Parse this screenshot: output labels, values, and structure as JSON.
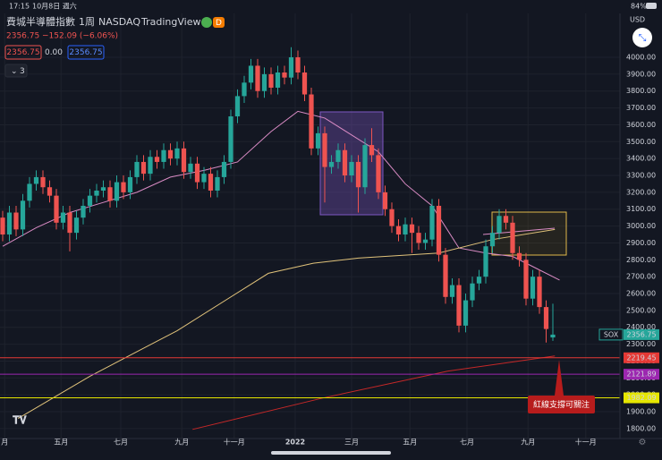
{
  "status": {
    "time": "17:15",
    "date": "10月8日 週六",
    "battery": "84%"
  },
  "header": {
    "symbol": "費城半導體指數",
    "interval": "1周",
    "exchange": "NASDAQ",
    "source": "TradingView",
    "badge": "D",
    "price": "2356.75",
    "change": "−152.09 (−6.06%)",
    "bid": "2356.75",
    "spread": "0.00",
    "ask": "2356.75",
    "indicators": "3",
    "currency": "USD"
  },
  "chart_data": {
    "type": "candlestick",
    "symbol_label": "SOX",
    "up_color": "#26a69a",
    "down_color": "#ef5350",
    "grid": true,
    "x": [
      0,
      1,
      2,
      3,
      4,
      5,
      6,
      7,
      8,
      9,
      10,
      11,
      12,
      13,
      14,
      15,
      16,
      17,
      18,
      19,
      20,
      21,
      22,
      23,
      24,
      25,
      26,
      27,
      28,
      29,
      30,
      31,
      32,
      33,
      34,
      35,
      36,
      37,
      38,
      39,
      40,
      41,
      42,
      43,
      44,
      45,
      46,
      47,
      48,
      49,
      50,
      51,
      52,
      53,
      54,
      55,
      56,
      57,
      58,
      59,
      60,
      61,
      62,
      63,
      64,
      65,
      66,
      67,
      68,
      69,
      70,
      71,
      72,
      73,
      74,
      75,
      76,
      77,
      78,
      79,
      80,
      81,
      82
    ],
    "open": [
      3050,
      2950,
      3080,
      2980,
      3150,
      3250,
      3290,
      3230,
      3180,
      3020,
      3080,
      2960,
      3050,
      3120,
      3180,
      3210,
      3230,
      3150,
      3260,
      3200,
      3290,
      3380,
      3310,
      3410,
      3380,
      3450,
      3400,
      3460,
      3320,
      3370,
      3260,
      3310,
      3210,
      3290,
      3380,
      3650,
      3770,
      3850,
      3950,
      3800,
      3900,
      3820,
      3910,
      3880,
      4000,
      3910,
      3780,
      3460,
      3550,
      3350,
      3380,
      3450,
      3300,
      3380,
      3230,
      3480,
      3420,
      3200,
      3100,
      3000,
      2950,
      3010,
      2960,
      2900,
      2920,
      3120,
      2830,
      2580,
      2650,
      2410,
      2560,
      2660,
      2700,
      2880,
      2960,
      3060,
      3020,
      2840,
      2800,
      2570,
      2700,
      2520,
      2340
    ],
    "high": [
      3090,
      3120,
      3120,
      3190,
      3290,
      3330,
      3330,
      3270,
      3220,
      3120,
      3120,
      3090,
      3160,
      3220,
      3250,
      3270,
      3270,
      3300,
      3300,
      3330,
      3420,
      3420,
      3450,
      3450,
      3490,
      3490,
      3500,
      3500,
      3410,
      3410,
      3350,
      3350,
      3330,
      3420,
      3690,
      3810,
      3890,
      3990,
      3990,
      3940,
      3940,
      3950,
      3950,
      4060,
      4040,
      3950,
      3820,
      3590,
      3590,
      3420,
      3490,
      3490,
      3420,
      3420,
      3520,
      3580,
      3460,
      3240,
      3140,
      3040,
      3050,
      3050,
      3000,
      2960,
      3160,
      3160,
      2870,
      2690,
      2690,
      2600,
      2700,
      2740,
      2920,
      3000,
      3100,
      3100,
      3060,
      2880,
      2840,
      2740,
      2740,
      2560,
      2540
    ],
    "low": [
      2910,
      2910,
      2940,
      2940,
      3110,
      3210,
      3190,
      3140,
      2980,
      2980,
      2850,
      2920,
      3010,
      3080,
      3140,
      3170,
      3110,
      3110,
      3160,
      3160,
      3250,
      3270,
      3270,
      3340,
      3340,
      3360,
      3360,
      3280,
      3280,
      3220,
      3220,
      3170,
      3170,
      3250,
      3340,
      3610,
      3730,
      3810,
      3760,
      3760,
      3780,
      3780,
      3840,
      3840,
      3870,
      3740,
      3420,
      3420,
      3140,
      3310,
      3340,
      3260,
      3260,
      3080,
      3190,
      3380,
      3160,
      3060,
      2960,
      2910,
      2910,
      2840,
      2860,
      2860,
      2880,
      2790,
      2540,
      2540,
      2370,
      2370,
      2520,
      2620,
      2660,
      2840,
      2920,
      2980,
      2800,
      2760,
      2530,
      2530,
      2480,
      2310,
      2320
    ],
    "close": [
      2950,
      3080,
      2980,
      3150,
      3250,
      3290,
      3230,
      3180,
      3020,
      3080,
      2960,
      3050,
      3120,
      3180,
      3210,
      3230,
      3150,
      3260,
      3200,
      3290,
      3380,
      3310,
      3410,
      3380,
      3450,
      3400,
      3460,
      3320,
      3370,
      3260,
      3310,
      3210,
      3290,
      3380,
      3650,
      3770,
      3850,
      3950,
      3800,
      3900,
      3820,
      3910,
      3880,
      4000,
      3910,
      3780,
      3460,
      3550,
      3350,
      3380,
      3450,
      3300,
      3380,
      3230,
      3480,
      3420,
      3200,
      3100,
      3000,
      2950,
      3010,
      2960,
      2900,
      2920,
      3120,
      2830,
      2580,
      2650,
      2410,
      2560,
      2660,
      2700,
      2880,
      2960,
      3060,
      3020,
      2840,
      2800,
      2570,
      2700,
      2520,
      2390,
      2356.75
    ],
    "lines": [
      {
        "color": "#d98bc4",
        "x": [
          0,
          5,
          10,
          15,
          20,
          25,
          30,
          35,
          40,
          44,
          48,
          52,
          56,
          60,
          64,
          68,
          72,
          76,
          80,
          83
        ],
        "values": [
          2880,
          2990,
          3080,
          3140,
          3200,
          3290,
          3330,
          3380,
          3560,
          3680,
          3640,
          3540,
          3440,
          3250,
          3120,
          2870,
          2840,
          2820,
          2740,
          2680
        ]
      },
      {
        "color": "#e0c27a",
        "x": [
          2.3,
          13,
          26,
          39.6,
          46.3,
          53,
          65,
          73,
          82.3
        ],
        "values": [
          1860,
          2110,
          2380,
          2720,
          2780,
          2810,
          2840,
          2920,
          2980
        ]
      },
      {
        "color": "#c62828",
        "x": [
          28.3,
          47.6,
          66.3,
          82.3
        ],
        "values": [
          1795,
          1980,
          2140,
          2230
        ]
      }
    ],
    "levels": [
      {
        "value": 2219.45,
        "color": "#e53935"
      },
      {
        "value": 2121.89,
        "color": "#9c27b0"
      },
      {
        "value": 1982.09,
        "color": "#e6e600"
      }
    ],
    "annotation": "紅線支撐可關注",
    "xlim": [
      -0.4,
      92
    ],
    "ylim": [
      1741,
      4260
    ],
    "xticks": [
      {
        "value": 0.3,
        "label": "月"
      },
      {
        "value": 8.7,
        "label": "五月"
      },
      {
        "value": 17.6,
        "label": "七月"
      },
      {
        "value": 26.7,
        "label": "九月"
      },
      {
        "value": 34.5,
        "label": "十一月"
      },
      {
        "value": 43.6,
        "label": "2022"
      },
      {
        "value": 52,
        "label": "三月"
      },
      {
        "value": 60.7,
        "label": "五月"
      },
      {
        "value": 69.2,
        "label": "七月"
      },
      {
        "value": 78.3,
        "label": "九月"
      },
      {
        "value": 86.9,
        "label": "十一月"
      }
    ],
    "yticks": [
      {
        "value": 1800,
        "label": "1800.00"
      },
      {
        "value": 1900,
        "label": "1900.00"
      },
      {
        "value": 2000,
        "label": "2000.00"
      },
      {
        "value": 2100,
        "label": "2100.00"
      },
      {
        "value": 2200,
        "label": "2200.00"
      },
      {
        "value": 2300,
        "label": "2300.00"
      },
      {
        "value": 2400,
        "label": "2400.00"
      },
      {
        "value": 2500,
        "label": "2500.00"
      },
      {
        "value": 2600,
        "label": "2600.00"
      },
      {
        "value": 2700,
        "label": "2700.00"
      },
      {
        "value": 2800,
        "label": "2800.00"
      },
      {
        "value": 2900,
        "label": "2900.00"
      },
      {
        "value": 3000,
        "label": "3000.00"
      },
      {
        "value": 3100,
        "label": "3100.00"
      },
      {
        "value": 3200,
        "label": "3200.00"
      },
      {
        "value": 3300,
        "label": "3300.00"
      },
      {
        "value": 3400,
        "label": "3400.00"
      },
      {
        "value": 3500,
        "label": "3500.00"
      },
      {
        "value": 3600,
        "label": "3600.00"
      },
      {
        "value": 3700,
        "label": "3700.00"
      },
      {
        "value": 3800,
        "label": "3800.00"
      },
      {
        "value": 3900,
        "label": "3900.00"
      },
      {
        "value": 4000,
        "label": "4000.00"
      }
    ]
  }
}
